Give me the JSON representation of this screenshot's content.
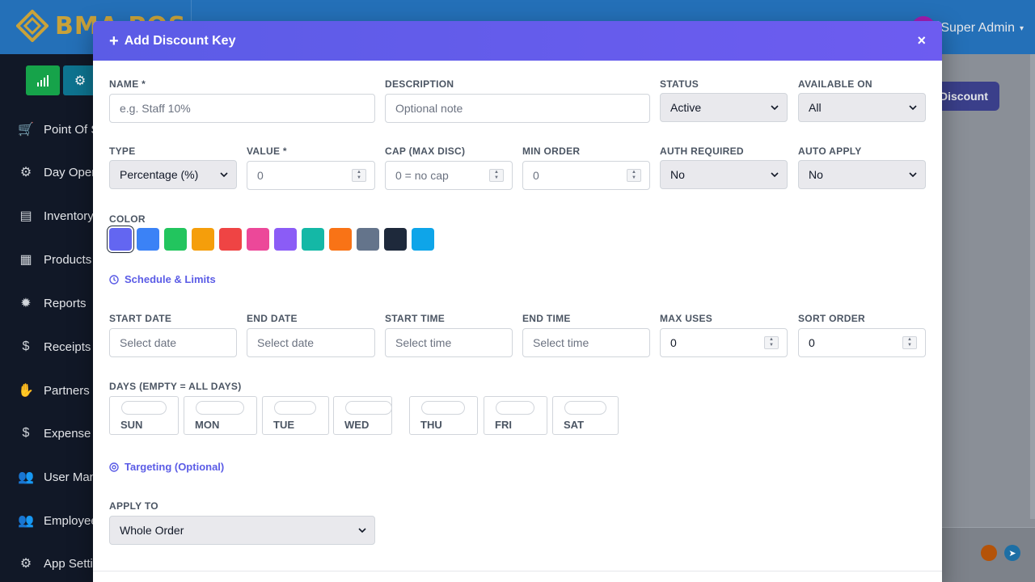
{
  "app": {
    "logo_text": "BMA POS",
    "user_name": "Super Admin"
  },
  "sidebar": {
    "items": [
      {
        "label": "Point Of S",
        "icon": "cart-icon"
      },
      {
        "label": "Day Opera",
        "icon": "gear-icon"
      },
      {
        "label": "Inventory",
        "icon": "warehouse-icon"
      },
      {
        "label": "Products",
        "icon": "box-icon"
      },
      {
        "label": "Reports",
        "icon": "badge-icon"
      },
      {
        "label": "Receipts",
        "icon": "dollar-icon"
      },
      {
        "label": "Partners",
        "icon": "handshake-icon"
      },
      {
        "label": "Expense",
        "icon": "dollar-icon"
      },
      {
        "label": "User Man",
        "icon": "users-icon"
      },
      {
        "label": "Employee",
        "icon": "users-gear-icon"
      },
      {
        "label": "App Setti",
        "icon": "gear-icon"
      }
    ]
  },
  "background": {
    "discount_button": "Discount"
  },
  "modal": {
    "title": "Add Discount Key",
    "close": "×",
    "fields": {
      "name": {
        "label": "NAME *",
        "placeholder": "e.g. Staff 10%"
      },
      "description": {
        "label": "DESCRIPTION",
        "placeholder": "Optional note"
      },
      "status": {
        "label": "STATUS",
        "value": "Active"
      },
      "available_on": {
        "label": "AVAILABLE ON",
        "value": "All"
      },
      "type": {
        "label": "TYPE",
        "value": "Percentage (%)"
      },
      "value": {
        "label": "VALUE *",
        "placeholder": "0"
      },
      "cap": {
        "label": "CAP (MAX DISC)",
        "placeholder": "0 = no cap"
      },
      "min_order": {
        "label": "MIN ORDER",
        "placeholder": "0"
      },
      "auth_required": {
        "label": "AUTH REQUIRED",
        "value": "No"
      },
      "auto_apply": {
        "label": "AUTO APPLY",
        "value": "No"
      }
    },
    "color": {
      "label": "COLOR",
      "selected_index": 0,
      "swatches": [
        "#6366f1",
        "#3b82f6",
        "#22c55e",
        "#f59e0b",
        "#ef4444",
        "#ec4899",
        "#8b5cf6",
        "#14b8a6",
        "#f97316",
        "#64748b",
        "#1e293b",
        "#0ea5e9"
      ]
    },
    "schedule": {
      "title": "Schedule & Limits",
      "start_date": {
        "label": "START DATE",
        "placeholder": "Select date"
      },
      "end_date": {
        "label": "END DATE",
        "placeholder": "Select date"
      },
      "start_time": {
        "label": "START TIME",
        "placeholder": "Select time"
      },
      "end_time": {
        "label": "END TIME",
        "placeholder": "Select time"
      },
      "max_uses": {
        "label": "MAX USES",
        "value": "0"
      },
      "sort_order": {
        "label": "SORT ORDER",
        "value": "0"
      }
    },
    "days": {
      "label": "DAYS (EMPTY = ALL DAYS)",
      "items": [
        "SUN",
        "MON",
        "TUE",
        "WED",
        "THU",
        "FRI",
        "SAT"
      ]
    },
    "targeting": {
      "title": "Targeting (Optional)",
      "apply_to": {
        "label": "APPLY TO",
        "value": "Whole Order"
      }
    }
  }
}
